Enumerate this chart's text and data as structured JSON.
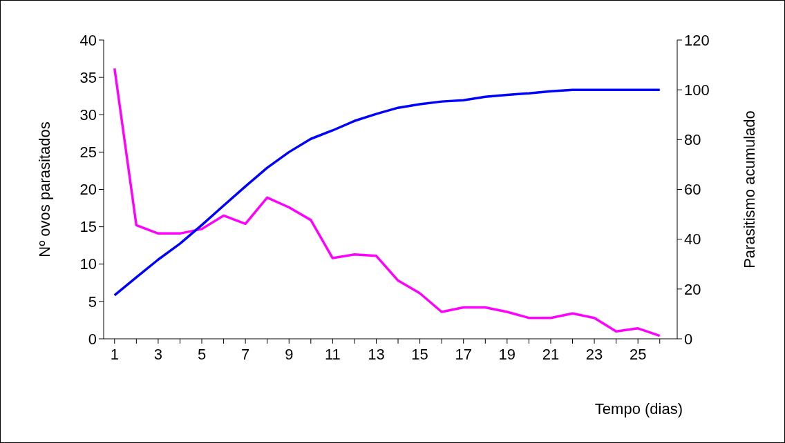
{
  "chart_data": {
    "type": "line",
    "xlabel": "Tempo (dias)",
    "ylabel": "Nº ovos parasitados",
    "y2label": "Parasitismo acumulado",
    "x": [
      1,
      2,
      3,
      4,
      5,
      6,
      7,
      8,
      9,
      10,
      11,
      12,
      13,
      14,
      15,
      16,
      17,
      18,
      19,
      20,
      21,
      22,
      23,
      24,
      25,
      26
    ],
    "xlim": [
      0.5,
      26.8
    ],
    "xticks": [
      1,
      {
        "value": 2,
        "label": null
      },
      3,
      {
        "value": 4,
        "label": null
      },
      5,
      {
        "value": 6,
        "label": null
      },
      7,
      {
        "value": 8,
        "label": null
      },
      9,
      {
        "value": 10,
        "label": null
      },
      11,
      {
        "value": 12,
        "label": null
      },
      13,
      {
        "value": 14,
        "label": null
      },
      15,
      {
        "value": 16,
        "label": null
      },
      17,
      {
        "value": 18,
        "label": null
      },
      19,
      {
        "value": 20,
        "label": null
      },
      21,
      {
        "value": 22,
        "label": null
      },
      23,
      {
        "value": 24,
        "label": null
      },
      25,
      {
        "value": 26,
        "label": null
      }
    ],
    "ylim": [
      0,
      40
    ],
    "yticks": [
      0,
      5,
      10,
      15,
      20,
      25,
      30,
      35,
      40
    ],
    "y2lim": [
      0,
      120
    ],
    "y2ticks": [
      0,
      20,
      40,
      60,
      80,
      100,
      120
    ],
    "grid": false,
    "marker": "none",
    "line_style": "solid",
    "series": [
      {
        "color": "#ff00ff",
        "values": [
          36.2,
          15.2,
          14.1,
          14.1,
          14.7,
          16.5,
          15.4,
          18.9,
          17.6,
          15.9,
          10.8,
          11.3,
          11.1,
          7.8,
          6.1,
          3.6,
          4.2,
          4.2,
          3.6,
          2.8,
          2.8,
          3.4,
          2.8,
          1.0,
          1.4,
          0.4
        ]
      },
      {
        "color": "#0000ff",
        "axis": "y2",
        "values": [
          17.5,
          24.7,
          31.8,
          38.2,
          45.7,
          53.5,
          61.2,
          68.7,
          75,
          80.3,
          83.7,
          87.5,
          90.3,
          92.8,
          94.2,
          95.3,
          95.8,
          97.2,
          98,
          98.6,
          99.4,
          100,
          100,
          100,
          100,
          100
        ]
      }
    ]
  }
}
